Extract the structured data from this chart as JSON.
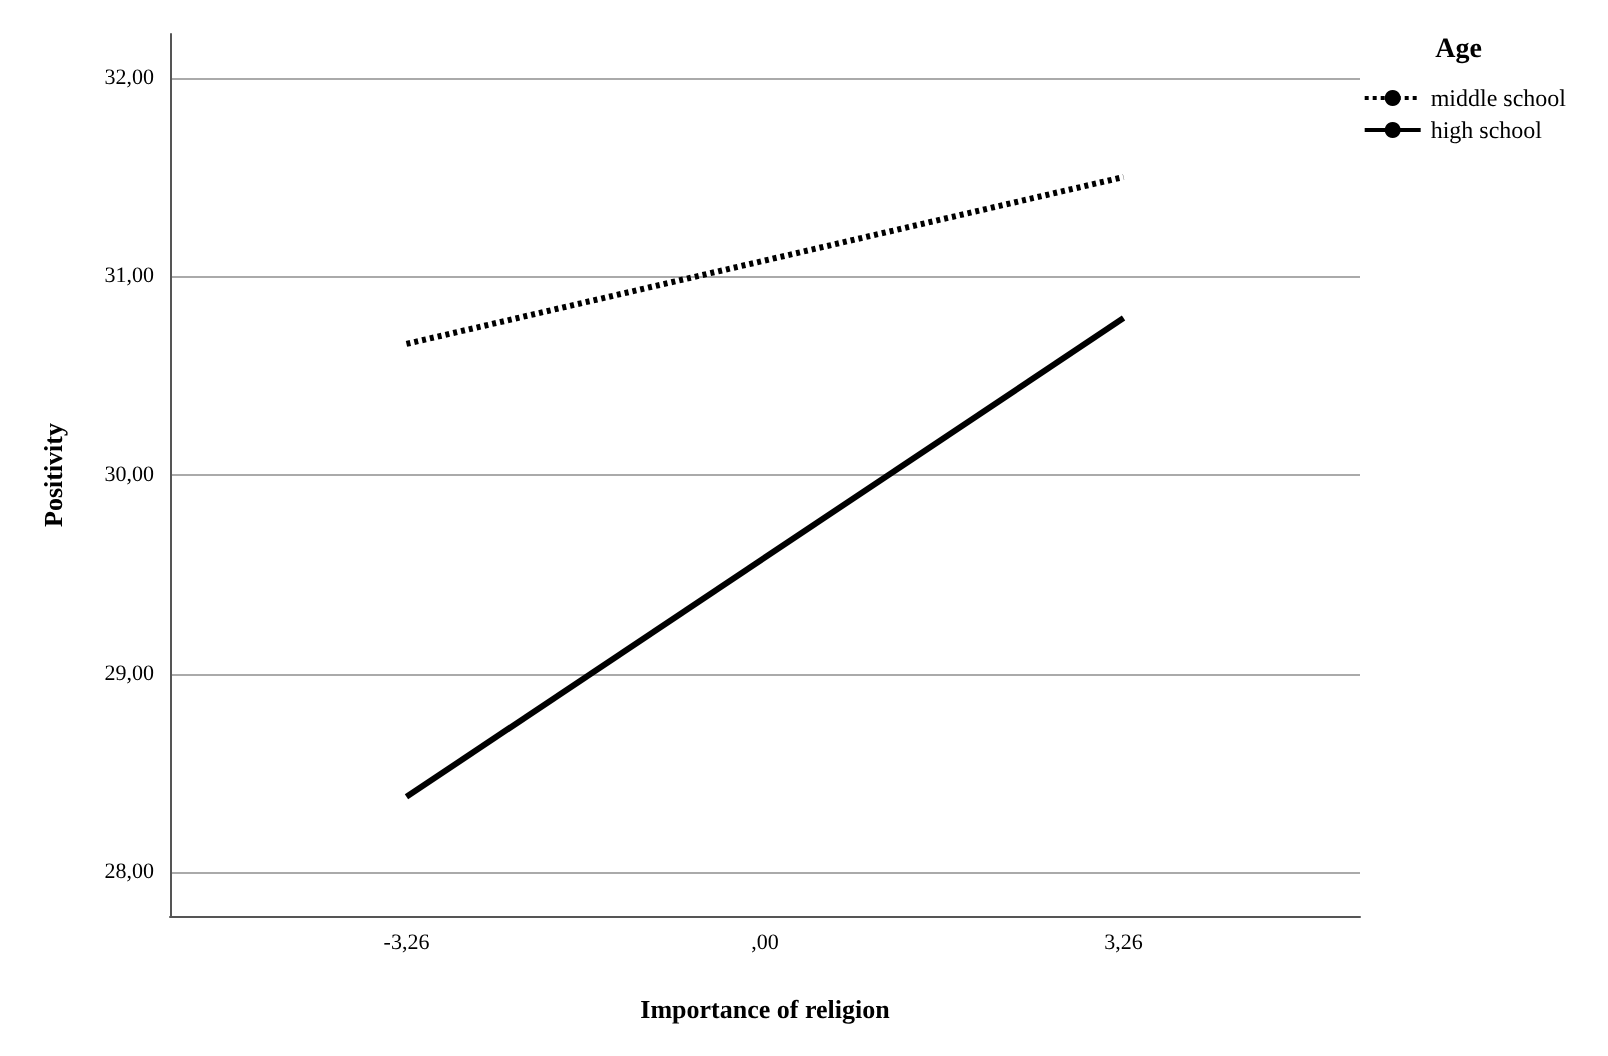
{
  "chart_data": {
    "type": "line",
    "xlabel": "Importance of religion",
    "ylabel": "Positivity",
    "legend_title": "Age",
    "x": [
      -3.26,
      3.26
    ],
    "series": [
      {
        "name": "middle school",
        "color": "#000000",
        "line_style": "dotted",
        "values": [
          30.66,
          31.5
        ]
      },
      {
        "name": "high school",
        "color": "#000000",
        "line_style": "solid",
        "values": [
          28.38,
          30.79
        ]
      }
    ],
    "xlim": [
      -5.41,
      5.41
    ],
    "xticks": [
      {
        "value": -3.26,
        "label": "-3,26"
      },
      {
        "value": 0,
        "label": ",00"
      },
      {
        "value": 3.26,
        "label": "3,26"
      }
    ],
    "ylim": [
      27.78,
      32.22
    ],
    "yticks": [
      {
        "value": 28,
        "label": "28,00"
      },
      {
        "value": 29,
        "label": "29,00"
      },
      {
        "value": 30,
        "label": "30,00"
      },
      {
        "value": 31,
        "label": "31,00"
      },
      {
        "value": 32,
        "label": "32,00"
      }
    ],
    "grid": "y",
    "legend": "top right",
    "marker": "none"
  }
}
